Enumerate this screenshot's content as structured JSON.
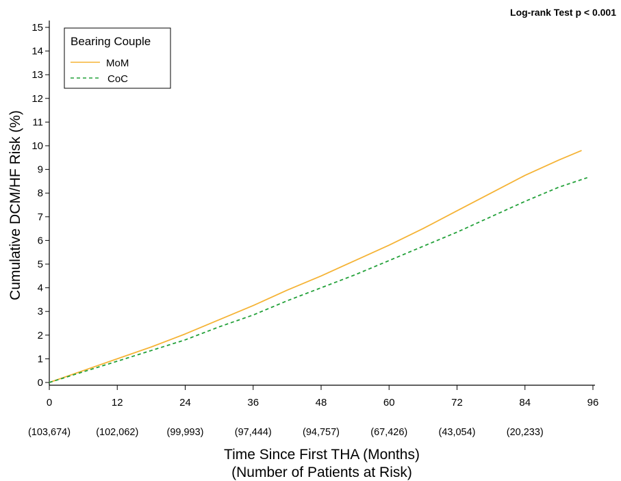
{
  "chart_data": {
    "type": "line",
    "annotation": "Log-rank Test p < 0.001",
    "xlabel": "Time Since First THA (Months)",
    "xlabel_sub": "(Number of Patients at Risk)",
    "ylabel": "Cumulative DCM/HF Risk (%)",
    "xlim": [
      0,
      96
    ],
    "ylim": [
      0,
      15
    ],
    "x_ticks": [
      0,
      12,
      24,
      36,
      48,
      60,
      72,
      84,
      96
    ],
    "y_ticks": [
      0,
      1,
      2,
      3,
      4,
      5,
      6,
      7,
      8,
      9,
      10,
      11,
      12,
      13,
      14,
      15
    ],
    "at_risk": [
      "(103,674)",
      "(102,062)",
      "(99,993)",
      "(97,444)",
      "(94,757)",
      "(67,426)",
      "(43,054)",
      "(20,233)"
    ],
    "legend": {
      "title": "Bearing Couple",
      "position": "top-left"
    },
    "series": [
      {
        "name": "MoM",
        "color": "#f5b335",
        "style": "solid",
        "x": [
          0,
          6,
          12,
          18,
          24,
          30,
          36,
          42,
          48,
          54,
          60,
          66,
          72,
          78,
          84,
          90,
          94
        ],
        "y": [
          0,
          0.5,
          1.0,
          1.5,
          2.05,
          2.65,
          3.25,
          3.9,
          4.5,
          5.15,
          5.8,
          6.5,
          7.25,
          8.0,
          8.75,
          9.4,
          9.8
        ]
      },
      {
        "name": "CoC",
        "color": "#21a038",
        "style": "dashed",
        "x": [
          0,
          6,
          12,
          18,
          24,
          30,
          36,
          42,
          48,
          54,
          60,
          66,
          72,
          78,
          84,
          90,
          95
        ],
        "y": [
          0,
          0.45,
          0.9,
          1.35,
          1.8,
          2.35,
          2.85,
          3.45,
          4.0,
          4.55,
          5.15,
          5.75,
          6.35,
          7.0,
          7.65,
          8.25,
          8.65
        ]
      }
    ]
  }
}
